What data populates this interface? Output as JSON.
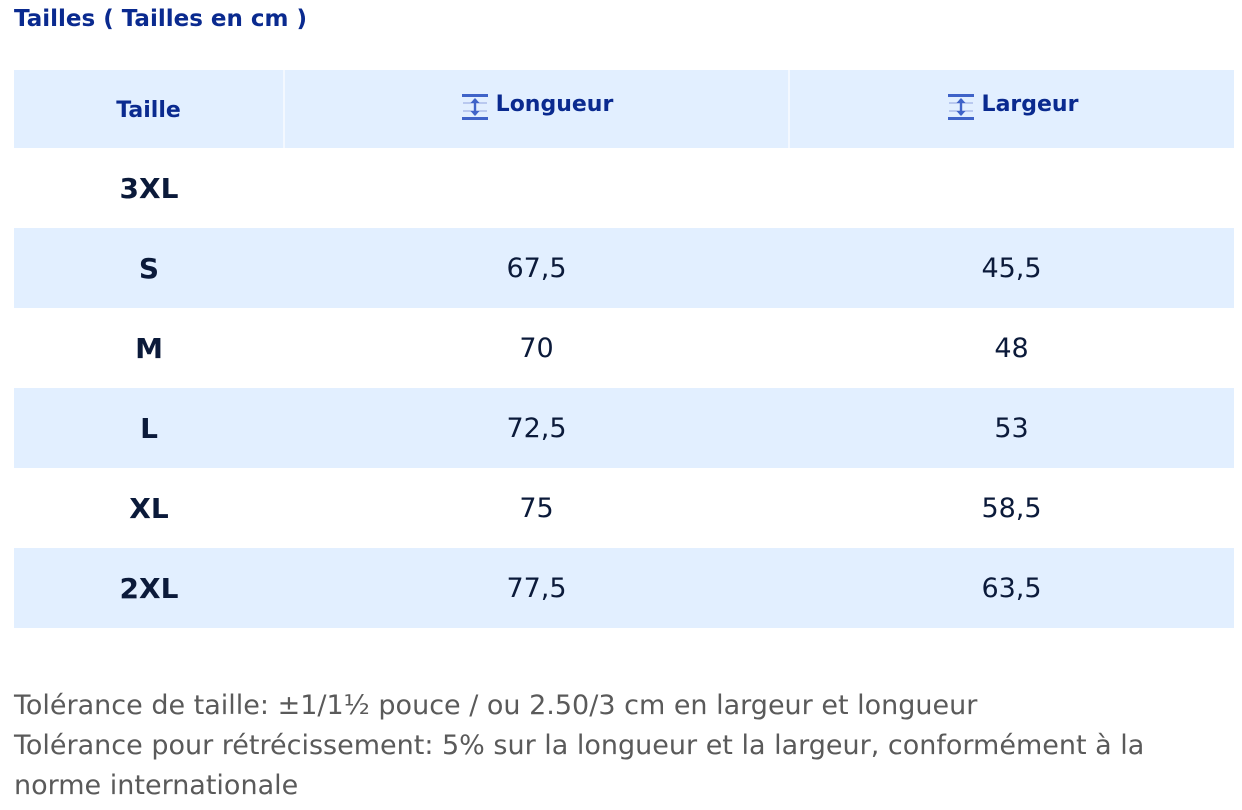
{
  "title": "Tailles ( Tailles en cm )",
  "table": {
    "headers": {
      "size": "Taille",
      "length": "Longueur",
      "width": "Largeur",
      "length_icon": "vertical-measure-icon",
      "width_icon": "vertical-measure-icon"
    },
    "rows": [
      {
        "size": "3XL",
        "length": "",
        "width": ""
      },
      {
        "size": "S",
        "length": "67,5",
        "width": "45,5"
      },
      {
        "size": "M",
        "length": "70",
        "width": "48"
      },
      {
        "size": "L",
        "length": "72,5",
        "width": "53"
      },
      {
        "size": "XL",
        "length": "75",
        "width": "58,5"
      },
      {
        "size": "2XL",
        "length": "77,5",
        "width": "63,5"
      }
    ]
  },
  "notes": {
    "tolerance": "Tolérance de taille: ±1/1½ pouce / ou 2.50/3 cm en largeur et longueur",
    "shrinkage": "Tolérance pour rétrécissement: 5% sur la longueur et la largeur, conformément à la norme internationale"
  },
  "colors": {
    "title": "#0a2a8f",
    "header_bg": "#e2efff",
    "stripe_bg": "#e2efff",
    "note_text": "#5a5a5a",
    "icon": "#3f63c8"
  }
}
